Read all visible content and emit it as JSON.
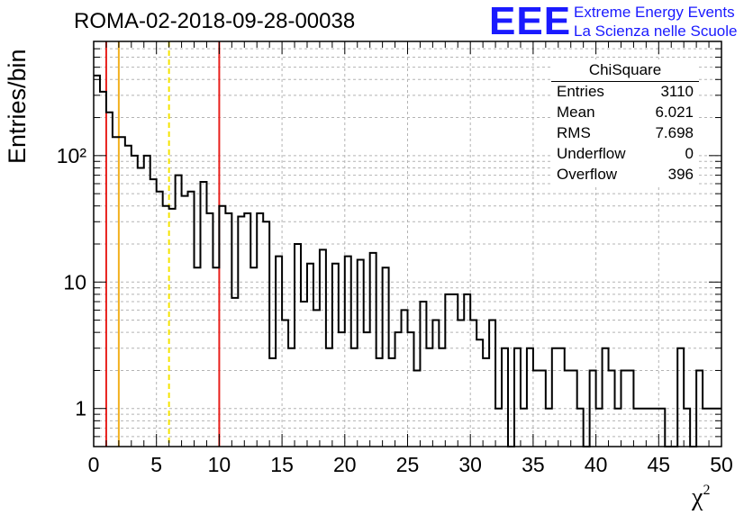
{
  "header": {
    "run_title": "ROMA-02-2018-09-28-00038",
    "logo_text": "EEE",
    "org_line1": "Extreme Energy Events",
    "org_line2": "La Scienza nelle Scuole"
  },
  "stats_box": {
    "title": "ChiSquare",
    "rows": [
      {
        "key": "Entries",
        "value": "3110"
      },
      {
        "key": "Mean",
        "value": "6.021"
      },
      {
        "key": "RMS",
        "value": "7.698"
      },
      {
        "key": "Underflow",
        "value": "0"
      },
      {
        "key": "Overflow",
        "value": "396"
      }
    ]
  },
  "colors": {
    "logo": "#1a1aff",
    "cut_red": "#e8201c",
    "cut_orange": "#f2b01e",
    "cut_yellow": "#f5e400",
    "grid": "#b4b4b4"
  },
  "chart_data": {
    "type": "bar",
    "style": "step-histogram",
    "xlabel": "χ²",
    "ylabel": "Entries/bin",
    "xlim": [
      0,
      50
    ],
    "ylim": [
      0.5,
      800
    ],
    "y_scale": "log",
    "bin_width": 0.5,
    "grid": true,
    "x_tick_labels": [
      "0",
      "5",
      "10",
      "15",
      "20",
      "25",
      "30",
      "35",
      "40",
      "45",
      "50"
    ],
    "y_tick_labels": [
      {
        "value": 1,
        "label": "1"
      },
      {
        "value": 10,
        "label": "10"
      },
      {
        "value": 100,
        "label": "10²"
      }
    ],
    "vertical_lines": [
      {
        "x": 1,
        "color": "#e8201c",
        "style": "solid"
      },
      {
        "x": 2,
        "color": "#f2b01e",
        "style": "solid"
      },
      {
        "x": 6,
        "color": "#f5e400",
        "style": "dashed"
      },
      {
        "x": 10,
        "color": "#e8201c",
        "style": "solid"
      }
    ],
    "values": [
      430,
      320,
      220,
      140,
      140,
      120,
      100,
      80,
      100,
      65,
      52,
      40,
      38,
      70,
      48,
      52,
      13,
      62,
      35,
      13,
      40,
      35,
      7.5,
      33,
      35,
      13,
      35,
      30,
      2.5,
      16,
      5,
      3,
      20,
      7,
      14,
      6,
      18,
      3,
      14,
      4,
      16,
      3,
      15,
      4,
      17,
      2.5,
      13,
      2.5,
      4,
      6,
      4,
      2,
      7,
      3,
      5,
      3,
      8,
      8,
      5,
      8,
      5,
      3.5,
      2.5,
      5,
      1,
      3,
      0,
      3,
      1,
      3,
      2,
      2,
      1,
      3,
      3,
      2,
      2,
      1,
      0.3,
      2,
      1,
      3,
      2,
      1,
      2,
      2,
      1,
      1,
      1,
      1,
      1,
      0,
      0,
      3,
      1,
      0,
      2,
      1,
      1,
      1,
      1,
      0,
      2,
      1,
      0,
      1,
      0,
      3,
      2,
      1,
      1,
      3,
      1,
      0,
      1,
      1,
      2,
      1,
      1,
      1
    ],
    "values_note": "n/a"
  }
}
